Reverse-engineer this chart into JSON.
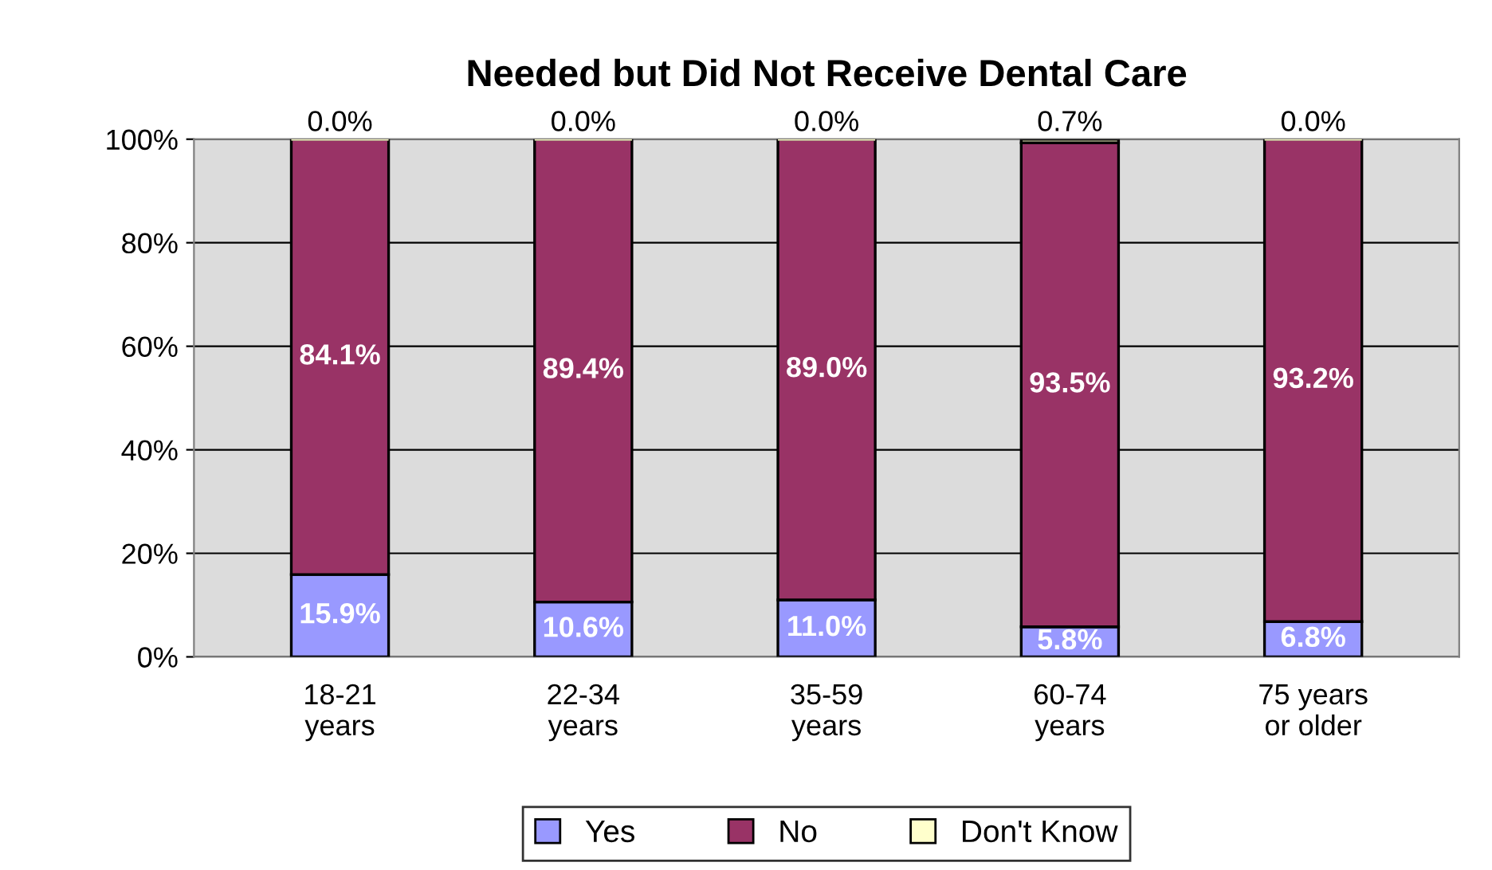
{
  "chart_data": {
    "type": "bar",
    "title": "Needed but Did Not Receive Dental Care",
    "categories": [
      "18-21\nyears",
      "22-34\nyears",
      "35-59\nyears",
      "60-74\nyears",
      "75 years\nor older"
    ],
    "stacked": true,
    "series": [
      {
        "name": "Yes",
        "color": "#9999ff",
        "values": [
          15.9,
          10.6,
          11.0,
          5.8,
          6.8
        ],
        "value_labels": [
          "15.9%",
          "10.6%",
          "11.0%",
          "5.8%",
          "6.8%"
        ]
      },
      {
        "name": "No",
        "color": "#993366",
        "values": [
          84.1,
          89.4,
          89.0,
          93.5,
          93.2
        ],
        "value_labels": [
          "84.1%",
          "89.4%",
          "89.0%",
          "93.5%",
          "93.2%"
        ]
      },
      {
        "name": "Don't Know",
        "color": "#ffffcc",
        "values": [
          0.0,
          0.0,
          0.0,
          0.7,
          0.0
        ],
        "value_labels": [
          "0.0%",
          "0.0%",
          "0.0%",
          "0.7%",
          "0.0%"
        ]
      }
    ],
    "ylim": [
      0,
      100
    ],
    "yticks": [
      {
        "value": 0,
        "label": "0%"
      },
      {
        "value": 20,
        "label": "20%"
      },
      {
        "value": 40,
        "label": "40%"
      },
      {
        "value": 60,
        "label": "60%"
      },
      {
        "value": 80,
        "label": "80%"
      },
      {
        "value": 100,
        "label": "100%"
      }
    ],
    "grid": "y",
    "legend": "bottom"
  }
}
